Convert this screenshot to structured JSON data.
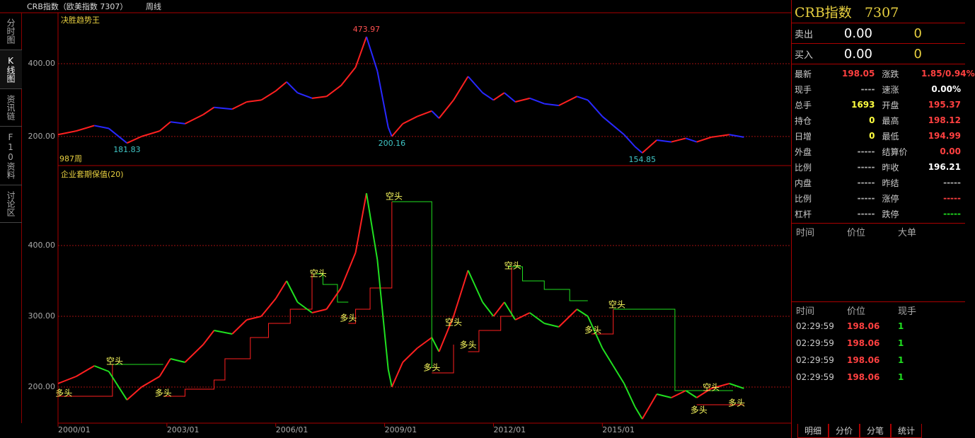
{
  "header": {
    "title": "CRB指数（欧美指数 7307）",
    "period": "周线"
  },
  "side_tabs": [
    "分时图",
    "K线图",
    "资讯链",
    "F10资料",
    "讨论区"
  ],
  "chart_data": [
    {
      "type": "line",
      "title": "决胜趋势王",
      "period_label": "987周",
      "xlim": [
        2000,
        2020.2
      ],
      "ylim": [
        120,
        540
      ],
      "yticks": [
        {
          "value": 200,
          "label": "200.00"
        },
        {
          "value": 400,
          "label": "400.00"
        }
      ],
      "grid": true,
      "up_color": "#ff2020",
      "down_color": "#2828ff",
      "x": [
        2000.0,
        2000.5,
        2001.0,
        2001.4,
        2001.9,
        2002.3,
        2002.8,
        2003.1,
        2003.5,
        2004.0,
        2004.3,
        2004.8,
        2005.2,
        2005.6,
        2006.0,
        2006.3,
        2006.6,
        2007.0,
        2007.4,
        2007.8,
        2008.2,
        2008.5,
        2008.8,
        2009.1,
        2009.2,
        2009.5,
        2009.9,
        2010.3,
        2010.5,
        2010.9,
        2011.3,
        2011.7,
        2012.0,
        2012.3,
        2012.6,
        2013.0,
        2013.4,
        2013.8,
        2014.3,
        2014.6,
        2015.0,
        2015.3,
        2015.6,
        2015.9,
        2016.1,
        2016.5,
        2016.9,
        2017.3,
        2017.6,
        2018.0,
        2018.5,
        2018.9
      ],
      "values": [
        205,
        215,
        230,
        222,
        181.83,
        200,
        215,
        240,
        235,
        260,
        280,
        275,
        295,
        300,
        325,
        350,
        320,
        305,
        310,
        340,
        390,
        473.97,
        380,
        225,
        200.16,
        235,
        255,
        270,
        250,
        300,
        365,
        320,
        300,
        320,
        295,
        305,
        290,
        285,
        310,
        300,
        255,
        230,
        205,
        172,
        154.85,
        190,
        185,
        195,
        185,
        198,
        205,
        198.05
      ],
      "annotations": [
        {
          "x": 2008.5,
          "value": 473.97,
          "color": "#ff5050"
        },
        {
          "x": 2001.9,
          "value": 181.83,
          "color": "#40c8c8"
        },
        {
          "x": 2009.2,
          "value": 200.16,
          "color": "#40c8c8"
        },
        {
          "x": 2016.1,
          "value": 154.85,
          "color": "#40c8c8"
        }
      ]
    },
    {
      "type": "line",
      "title": "企业套期保值(20)",
      "xlim": [
        2000,
        2020.2
      ],
      "ylim": [
        149,
        511
      ],
      "yticks": [
        {
          "value": 200,
          "label": "200.00"
        },
        {
          "value": 300,
          "label": "300.00"
        },
        {
          "value": 400,
          "label": "400.00"
        }
      ],
      "grid": true,
      "xticks": [
        {
          "value": 2000,
          "label": "2000/01"
        },
        {
          "value": 2003,
          "label": "2003/01"
        },
        {
          "value": 2006,
          "label": "2006/01"
        },
        {
          "value": 2009,
          "label": "2009/01"
        },
        {
          "value": 2012,
          "label": "2012/01"
        },
        {
          "value": 2015,
          "label": "2015/01"
        }
      ],
      "up_color": "#ff2020",
      "down_color": "#20e020",
      "x": [
        2000.0,
        2000.5,
        2001.0,
        2001.4,
        2001.9,
        2002.3,
        2002.8,
        2003.1,
        2003.5,
        2004.0,
        2004.3,
        2004.8,
        2005.2,
        2005.6,
        2006.0,
        2006.3,
        2006.6,
        2007.0,
        2007.4,
        2007.8,
        2008.2,
        2008.5,
        2008.8,
        2009.1,
        2009.2,
        2009.5,
        2009.9,
        2010.3,
        2010.5,
        2010.9,
        2011.3,
        2011.7,
        2012.0,
        2012.3,
        2012.6,
        2013.0,
        2013.4,
        2013.8,
        2014.3,
        2014.6,
        2015.0,
        2015.3,
        2015.6,
        2015.9,
        2016.1,
        2016.5,
        2016.9,
        2017.3,
        2017.6,
        2018.0,
        2018.5,
        2018.9
      ],
      "values": [
        205,
        215,
        230,
        222,
        181.83,
        200,
        215,
        240,
        235,
        260,
        280,
        275,
        295,
        300,
        325,
        350,
        320,
        305,
        310,
        340,
        390,
        473.97,
        380,
        225,
        200.16,
        235,
        255,
        270,
        250,
        300,
        365,
        320,
        300,
        320,
        295,
        305,
        290,
        285,
        310,
        300,
        255,
        230,
        205,
        172,
        154.85,
        190,
        185,
        195,
        185,
        198,
        205,
        198.05
      ],
      "stop_lines": [
        {
          "color": "#20e020",
          "x": [
            2001.4,
            2002.9,
            null,
            2007.0,
            2007.3,
            2007.3,
            2007.7,
            2007.7,
            2008.0,
            null,
            2009.2,
            2010.3,
            2010.3,
            null,
            2012.4,
            2012.8,
            2012.8,
            2013.4,
            2013.4,
            2014.1,
            2014.1,
            2014.6,
            null,
            2015.3,
            2017.0,
            2017.0,
            2018.6
          ],
          "values": [
            232,
            232,
            null,
            360,
            360,
            345,
            345,
            320,
            320,
            null,
            462,
            462,
            227,
            null,
            370,
            370,
            350,
            350,
            338,
            338,
            322,
            322,
            null,
            310,
            310,
            195,
            195
          ]
        },
        {
          "color": "#ff2020",
          "x": [
            2000.0,
            2001.5,
            2001.5,
            null,
            2002.9,
            2003.5,
            2003.5,
            2004.3,
            2004.3,
            2004.6,
            2004.6,
            2005.3,
            2005.3,
            2005.8,
            2005.8,
            2006.4,
            2006.4,
            2007.0,
            2007.0,
            null,
            2008.0,
            2008.2,
            2008.2,
            2008.6,
            2008.6,
            2009.2,
            2009.2,
            null,
            2010.3,
            2010.9,
            2010.9,
            null,
            2011.3,
            2011.6,
            2011.6,
            2012.2,
            2012.2,
            2012.5,
            2012.5,
            null,
            2014.7,
            2015.3,
            2015.3,
            null,
            2017.6,
            2018.9
          ],
          "values": [
            187,
            187,
            232,
            null,
            187,
            187,
            197,
            197,
            210,
            210,
            240,
            240,
            270,
            270,
            290,
            290,
            310,
            310,
            360,
            null,
            290,
            290,
            310,
            310,
            340,
            340,
            462,
            null,
            220,
            220,
            260,
            null,
            250,
            250,
            280,
            280,
            300,
            300,
            370,
            null,
            275,
            275,
            310,
            null,
            175,
            175
          ]
        }
      ],
      "signals": [
        {
          "x": 2000.16,
          "y": 191,
          "label": "多头"
        },
        {
          "x": 2001.56,
          "y": 236,
          "label": "空头"
        },
        {
          "x": 2002.9,
          "y": 191,
          "label": "多头"
        },
        {
          "x": 2007.17,
          "y": 360,
          "label": "空头"
        },
        {
          "x": 2008.0,
          "y": 297,
          "label": "多头"
        },
        {
          "x": 2009.26,
          "y": 469,
          "label": "空头"
        },
        {
          "x": 2010.3,
          "y": 227,
          "label": "多头"
        },
        {
          "x": 2010.9,
          "y": 291,
          "label": "空头"
        },
        {
          "x": 2011.3,
          "y": 259,
          "label": "多头"
        },
        {
          "x": 2012.53,
          "y": 371,
          "label": "空头"
        },
        {
          "x": 2014.74,
          "y": 280,
          "label": "多头"
        },
        {
          "x": 2015.4,
          "y": 316,
          "label": "空头"
        },
        {
          "x": 2017.66,
          "y": 167,
          "label": "多头"
        },
        {
          "x": 2018.0,
          "y": 199,
          "label": "空头"
        },
        {
          "x": 2018.7,
          "y": 177,
          "label": "多头"
        }
      ]
    }
  ],
  "quote": {
    "name": "CRB指数",
    "code": "7307",
    "book": [
      {
        "label": "卖出",
        "price": "0.00",
        "volume": "0"
      },
      {
        "label": "买入",
        "price": "0.00",
        "volume": "0"
      }
    ],
    "rows": [
      [
        {
          "label": "最新",
          "value": "198.05",
          "color": "#ff4040"
        },
        {
          "label": "涨跌",
          "value": "1.85/0.94%",
          "color": "#ff4040"
        }
      ],
      [
        {
          "label": "现手",
          "value": "----",
          "color": "#aaaaaa"
        },
        {
          "label": "速涨",
          "value": "0.00%",
          "color": "#ffffff"
        }
      ],
      [
        {
          "label": "总手",
          "value": "1693",
          "color": "#ffff40"
        },
        {
          "label": "开盘",
          "value": "195.37",
          "color": "#ff4040"
        }
      ],
      [
        {
          "label": "持仓",
          "value": "0",
          "color": "#ffff40"
        },
        {
          "label": "最高",
          "value": "198.12",
          "color": "#ff4040"
        }
      ],
      [
        {
          "label": "日增",
          "value": "0",
          "color": "#ffff40"
        },
        {
          "label": "最低",
          "value": "194.99",
          "color": "#ff4040"
        }
      ],
      [
        {
          "label": "外盘",
          "value": "-----",
          "color": "#aaaaaa"
        },
        {
          "label": "结算价",
          "value": "0.00",
          "color": "#ff4040"
        }
      ],
      [
        {
          "label": "比例",
          "value": "-----",
          "color": "#aaaaaa"
        },
        {
          "label": "昨收",
          "value": "196.21",
          "color": "#ffffff"
        }
      ],
      [
        {
          "label": "内盘",
          "value": "-----",
          "color": "#aaaaaa"
        },
        {
          "label": "昨结",
          "value": "-----",
          "color": "#aaaaaa"
        }
      ],
      [
        {
          "label": "比例",
          "value": "-----",
          "color": "#aaaaaa"
        },
        {
          "label": "涨停",
          "value": "-----",
          "color": "#ff4040"
        }
      ],
      [
        {
          "label": "杠杆",
          "value": "-----",
          "color": "#aaaaaa"
        },
        {
          "label": "跌停",
          "value": "-----",
          "color": "#20e020"
        }
      ]
    ]
  },
  "big_orders": {
    "columns": [
      "时间",
      "价位",
      "大单"
    ]
  },
  "trades": {
    "columns": [
      "时间",
      "价位",
      "现手"
    ],
    "rows": [
      [
        "02:29:59",
        "198.06",
        "1"
      ],
      [
        "02:29:59",
        "198.06",
        "1"
      ],
      [
        "02:29:59",
        "198.06",
        "1"
      ],
      [
        "02:29:59",
        "198.06",
        "1"
      ]
    ]
  },
  "bottom_tabs": [
    "明细",
    "分价",
    "分笔",
    "统计"
  ]
}
